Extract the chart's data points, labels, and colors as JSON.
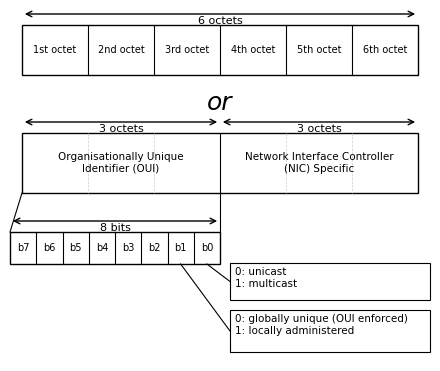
{
  "bg_color": "#ffffff",
  "fig_width": 4.4,
  "fig_height": 3.71,
  "dpi": 100,
  "row1_octets": [
    "1st octet",
    "2nd octet",
    "3rd octet",
    "4th octet",
    "5th octet",
    "6th octet"
  ],
  "row1_label": "6 octets",
  "or_text": "or",
  "row2_sections": [
    "Organisationally Unique\nIdentifier (OUI)",
    "Network Interface Controller\n(NIC) Specific"
  ],
  "row2_label_left": "3 octets",
  "row2_label_right": "3 octets",
  "bits_labels": [
    "b7",
    "b6",
    "b5",
    "b4",
    "b3",
    "b2",
    "b1",
    "b0"
  ],
  "bits_label": "8 bits",
  "annotation1_text": "0: unicast\n1: multicast",
  "annotation2_text": "0: globally unique (OUI enforced)\n1: locally administered",
  "line_color": "#000000",
  "text_color": "#000000"
}
